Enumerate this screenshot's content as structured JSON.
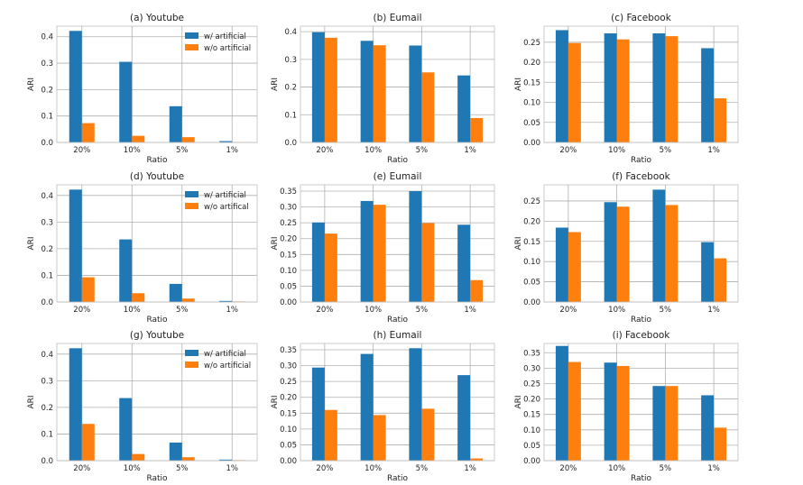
{
  "colors": {
    "with": "#1f77b4",
    "without": "#ff7f0e"
  },
  "chart_data": [
    {
      "type": "bar",
      "title": "(a) Youtube",
      "xlabel": "Ratio",
      "ylabel": "ARI",
      "categories": [
        "20%",
        "10%",
        "5%",
        "1%"
      ],
      "ylim": [
        0,
        0.44
      ],
      "yticks": [
        "0.0",
        "0.1",
        "0.2",
        "0.3",
        "0.4"
      ],
      "legend": "top-right",
      "series": [
        {
          "name": "w/ artificial",
          "values": [
            0.422,
            0.305,
            0.137,
            0.005
          ]
        },
        {
          "name": "w/o artificial",
          "values": [
            0.073,
            0.025,
            0.02,
            0.001
          ]
        }
      ]
    },
    {
      "type": "bar",
      "title": "(b) Eumail",
      "xlabel": "Ratio",
      "ylabel": "ARI",
      "categories": [
        "20%",
        "10%",
        "5%",
        "1%"
      ],
      "ylim": [
        0,
        0.42
      ],
      "yticks": [
        "0.0",
        "0.1",
        "0.2",
        "0.3",
        "0.4"
      ],
      "legend": "",
      "series": [
        {
          "name": "w/ artificial",
          "values": [
            0.398,
            0.367,
            0.35,
            0.242
          ]
        },
        {
          "name": "w/o artificial",
          "values": [
            0.378,
            0.351,
            0.253,
            0.088
          ]
        }
      ]
    },
    {
      "type": "bar",
      "title": "(c) Facebook",
      "xlabel": "Ratio",
      "ylabel": "ARI",
      "categories": [
        "20%",
        "10%",
        "5%",
        "1%"
      ],
      "ylim": [
        0,
        0.29
      ],
      "yticks": [
        "0.00",
        "0.05",
        "0.10",
        "0.15",
        "0.20",
        "0.25"
      ],
      "legend": "",
      "series": [
        {
          "name": "w/ artificial",
          "values": [
            0.28,
            0.272,
            0.272,
            0.235
          ]
        },
        {
          "name": "w/o artificial",
          "values": [
            0.248,
            0.257,
            0.265,
            0.11
          ]
        }
      ]
    },
    {
      "type": "bar",
      "title": "(d) Youtube",
      "xlabel": "Ratio",
      "ylabel": "ARI",
      "categories": [
        "20%",
        "10%",
        "5%",
        "1%"
      ],
      "ylim": [
        0,
        0.44
      ],
      "yticks": [
        "0.0",
        "0.1",
        "0.2",
        "0.3",
        "0.4"
      ],
      "legend": "top-right",
      "series": [
        {
          "name": "w/ artificial",
          "values": [
            0.422,
            0.235,
            0.068,
            0.004
          ]
        },
        {
          "name": "w/o artifical",
          "values": [
            0.093,
            0.033,
            0.013,
            0.002
          ]
        }
      ]
    },
    {
      "type": "bar",
      "title": "(e) Eumail",
      "xlabel": "Ratio",
      "ylabel": "ARI",
      "categories": [
        "20%",
        "10%",
        "5%",
        "1%"
      ],
      "ylim": [
        0,
        0.37
      ],
      "yticks": [
        "0.00",
        "0.05",
        "0.10",
        "0.15",
        "0.20",
        "0.25",
        "0.30",
        "0.35"
      ],
      "legend": "",
      "series": [
        {
          "name": "w/ artificial",
          "values": [
            0.251,
            0.319,
            0.35,
            0.244
          ]
        },
        {
          "name": "w/o artificial",
          "values": [
            0.216,
            0.307,
            0.249,
            0.069
          ]
        }
      ]
    },
    {
      "type": "bar",
      "title": "(f) Facebook",
      "xlabel": "Ratio",
      "ylabel": "ARI",
      "categories": [
        "20%",
        "10%",
        "5%",
        "1%"
      ],
      "ylim": [
        0,
        0.29
      ],
      "yticks": [
        "0.00",
        "0.05",
        "0.10",
        "0.15",
        "0.20",
        "0.25"
      ],
      "legend": "",
      "series": [
        {
          "name": "w/ artificial",
          "values": [
            0.184,
            0.247,
            0.278,
            0.148
          ]
        },
        {
          "name": "w/o artificial",
          "values": [
            0.173,
            0.236,
            0.24,
            0.108
          ]
        }
      ]
    },
    {
      "type": "bar",
      "title": "(g) Youtube",
      "xlabel": "Ratio",
      "ylabel": "ARI",
      "categories": [
        "20%",
        "10%",
        "5%",
        "1%"
      ],
      "ylim": [
        0,
        0.44
      ],
      "yticks": [
        "0.0",
        "0.1",
        "0.2",
        "0.3",
        "0.4"
      ],
      "legend": "top-right",
      "series": [
        {
          "name": "w/ artificial",
          "values": [
            0.422,
            0.235,
            0.068,
            0.004
          ]
        },
        {
          "name": "w/o artificial",
          "values": [
            0.138,
            0.025,
            0.013,
            0.002
          ]
        }
      ]
    },
    {
      "type": "bar",
      "title": "(h) Eumail",
      "xlabel": "Ratio",
      "ylabel": "ARI",
      "categories": [
        "20%",
        "10%",
        "5%",
        "1%"
      ],
      "ylim": [
        0,
        0.37
      ],
      "yticks": [
        "0.00",
        "0.05",
        "0.10",
        "0.15",
        "0.20",
        "0.25",
        "0.30",
        "0.35"
      ],
      "legend": "",
      "series": [
        {
          "name": "w/ artificial",
          "values": [
            0.294,
            0.337,
            0.355,
            0.27
          ]
        },
        {
          "name": "w/o artificial",
          "values": [
            0.16,
            0.144,
            0.164,
            0.007
          ]
        }
      ]
    },
    {
      "type": "bar",
      "title": "(i) Facebook",
      "xlabel": "Ratio",
      "ylabel": "ARI",
      "categories": [
        "20%",
        "10%",
        "5%",
        "1%"
      ],
      "ylim": [
        0,
        0.38
      ],
      "yticks": [
        "0.00",
        "0.05",
        "0.10",
        "0.15",
        "0.20",
        "0.25",
        "0.30",
        "0.35"
      ],
      "legend": "",
      "series": [
        {
          "name": "w/ artificial",
          "values": [
            0.372,
            0.318,
            0.242,
            0.212
          ]
        },
        {
          "name": "w/o artificial",
          "values": [
            0.32,
            0.307,
            0.242,
            0.107
          ]
        }
      ]
    }
  ]
}
